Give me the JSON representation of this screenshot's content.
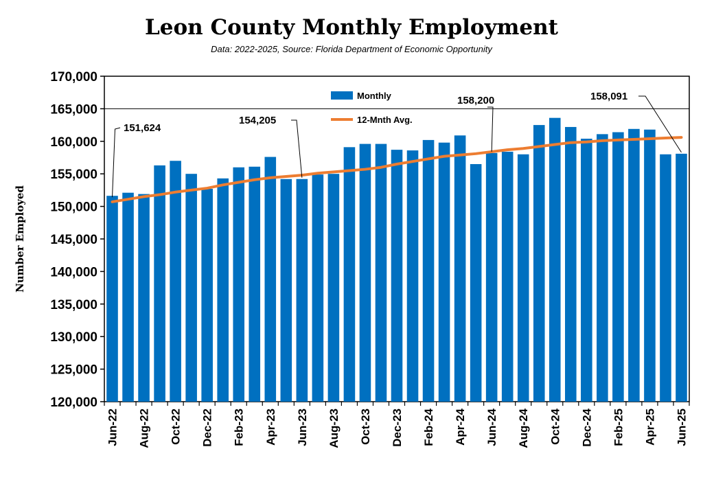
{
  "chart_data": {
    "type": "bar",
    "title": "Leon County Monthly Employment",
    "subtitle": "Data: 2022-2025, Source: Florida Department of Economic Opportunity",
    "xlabel": "",
    "ylabel": "Number Employed",
    "ylim": [
      120000,
      170000
    ],
    "yticks": [
      "120,000",
      "125,000",
      "130,000",
      "135,000",
      "140,000",
      "145,000",
      "150,000",
      "155,000",
      "160,000",
      "165,000",
      "170,000"
    ],
    "ytick_values": [
      120000,
      125000,
      130000,
      135000,
      140000,
      145000,
      150000,
      155000,
      160000,
      165000,
      170000
    ],
    "grid": "horizontal at 165,000",
    "legend": "top-center",
    "categories": [
      "Jun-22",
      "Jul-22",
      "Aug-22",
      "Sep-22",
      "Oct-22",
      "Nov-22",
      "Dec-22",
      "Jan-23",
      "Feb-23",
      "Mar-23",
      "Apr-23",
      "May-23",
      "Jun-23",
      "Jul-23",
      "Aug-23",
      "Sep-23",
      "Oct-23",
      "Nov-23",
      "Dec-23",
      "Jan-24",
      "Feb-24",
      "Mar-24",
      "Apr-24",
      "May-24",
      "Jun-24",
      "Jul-24",
      "Aug-24",
      "Sep-24",
      "Oct-24",
      "Nov-24",
      "Dec-24",
      "Jan-25",
      "Feb-25",
      "Mar-25",
      "Apr-25",
      "May-25",
      "Jun-25"
    ],
    "x_tick_labels": [
      "Jun-22",
      "",
      "Aug-22",
      "",
      "Oct-22",
      "",
      "Dec-22",
      "",
      "Feb-23",
      "",
      "Apr-23",
      "",
      "Jun-23",
      "",
      "Aug-23",
      "",
      "Oct-23",
      "",
      "Dec-23",
      "",
      "Feb-24",
      "",
      "Apr-24",
      "",
      "Jun-24",
      "",
      "Aug-24",
      "",
      "Oct-24",
      "",
      "Dec-24",
      "",
      "Feb-25",
      "",
      "Apr-25",
      "",
      "Jun-25"
    ],
    "series": [
      {
        "name": "Monthly",
        "type": "bar",
        "color": "#0070C0",
        "values": [
          151624,
          152100,
          151900,
          156300,
          157000,
          155000,
          152700,
          154300,
          156000,
          156100,
          157600,
          154200,
          154205,
          154900,
          155000,
          159100,
          159600,
          159600,
          158700,
          158600,
          160200,
          159800,
          160900,
          156500,
          158200,
          158400,
          158000,
          162500,
          163600,
          162200,
          160400,
          161100,
          161400,
          161900,
          161800,
          158000,
          158091
        ]
      },
      {
        "name": "12-Mnth Avg.",
        "type": "line",
        "color": "#ED7D31",
        "values": [
          150700,
          151100,
          151500,
          151800,
          152200,
          152500,
          152800,
          153300,
          153700,
          154100,
          154400,
          154600,
          154800,
          155100,
          155300,
          155500,
          155700,
          156000,
          156500,
          156900,
          157300,
          157700,
          157900,
          158100,
          158400,
          158700,
          158900,
          159200,
          159500,
          159800,
          159900,
          160100,
          160200,
          160300,
          160400,
          160500,
          160600
        ]
      }
    ],
    "annotations": [
      {
        "text": "151,624",
        "category": "Jun-22"
      },
      {
        "text": "154,205",
        "category": "Jun-23"
      },
      {
        "text": "158,200",
        "category": "Jun-24"
      },
      {
        "text": "158,091",
        "category": "Jun-25"
      }
    ]
  }
}
